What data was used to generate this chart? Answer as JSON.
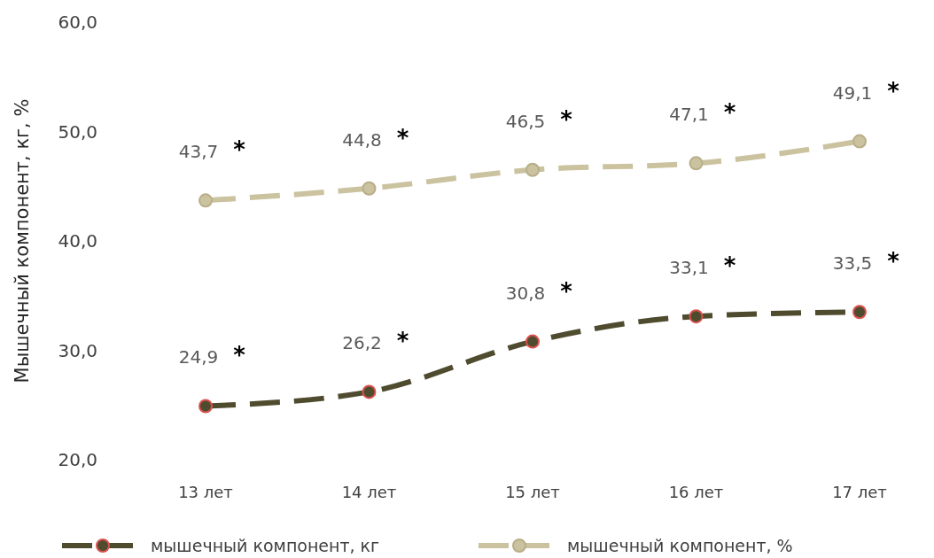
{
  "chart_data": {
    "type": "line",
    "ylabel": "Мышечный компонент, кг, %",
    "categories": [
      "13 лет",
      "14 лет",
      "15 лет",
      "16 лет",
      "17 лет"
    ],
    "series": [
      {
        "name": "мышечный компонент, кг",
        "color": "#4f4b2e",
        "values": [
          24.9,
          26.2,
          30.8,
          33.1,
          33.5
        ],
        "value_labels": [
          "24,9",
          "26,2",
          "30,8",
          "33,1",
          "33,5"
        ]
      },
      {
        "name": "мышечный компонент, %",
        "color": "#cbc29f",
        "values": [
          43.7,
          44.8,
          46.5,
          47.1,
          49.1
        ],
        "value_labels": [
          "43,7",
          "44,8",
          "46,5",
          "47,1",
          "49,1"
        ]
      }
    ],
    "ylim": [
      20,
      60
    ],
    "yticks": [
      {
        "value": 20,
        "label": "20,0"
      },
      {
        "value": 30,
        "label": "30,0"
      },
      {
        "value": 40,
        "label": "40,0"
      },
      {
        "value": 50,
        "label": "50,0"
      },
      {
        "value": 60,
        "label": "60,0"
      }
    ],
    "marker": "circle",
    "line_style": "dashed",
    "legend": "bottom",
    "grid": false,
    "annotations": [
      {
        "text": "*",
        "x": "13 лет",
        "y": 24.9
      },
      {
        "text": "*",
        "x": "14 лет",
        "y": 26.2
      },
      {
        "text": "*",
        "x": "15 лет",
        "y": 30.8
      },
      {
        "text": "*",
        "x": "16 лет",
        "y": 33.1
      },
      {
        "text": "*",
        "x": "17 лет",
        "y": 33.5
      },
      {
        "text": "*",
        "x": "13 лет",
        "y": 43.7
      },
      {
        "text": "*",
        "x": "14 лет",
        "y": 44.8
      },
      {
        "text": "*",
        "x": "15 лет",
        "y": 46.5
      },
      {
        "text": "*",
        "x": "16 лет",
        "y": 47.1
      },
      {
        "text": "*",
        "x": "17 лет",
        "y": 49.1
      }
    ]
  }
}
